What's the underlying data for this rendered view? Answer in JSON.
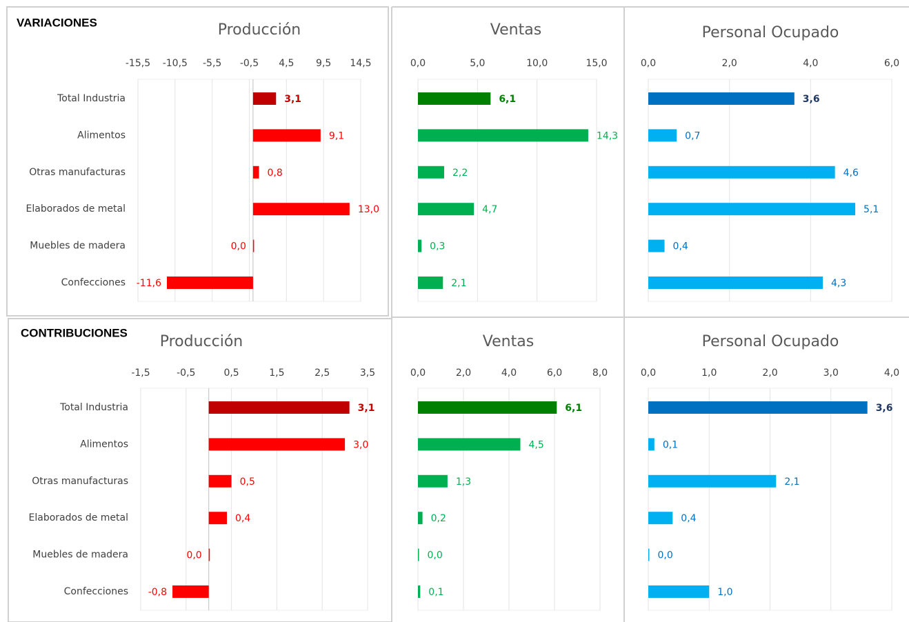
{
  "sections": [
    "VARIACIONES",
    "CONTRIBUCIONES"
  ],
  "chart_data": [
    {
      "type": "bar",
      "orientation": "horizontal",
      "title": "Producción",
      "categories": [
        "Total Industria",
        "Alimentos",
        "Otras manufacturas",
        "Elaborados de metal",
        "Muebles de madera",
        "Confecciones"
      ],
      "values": [
        3.1,
        9.1,
        0.8,
        13.0,
        0.0,
        -11.6
      ],
      "value_labels": [
        "3,1",
        "9,1",
        "0,8",
        "13,0",
        "0,0",
        "-11,6"
      ],
      "colors": [
        "#c00000",
        "#ff0000",
        "#ff0000",
        "#ff0000",
        "#ff0000",
        "#ff0000"
      ],
      "value_label_colors": [
        "#c00000",
        "#ff0000",
        "#ff0000",
        "#ff0000",
        "#ff0000",
        "#ff0000"
      ],
      "xlim": [
        -15.5,
        14.5
      ],
      "xticks": [
        {
          "value": -15.5,
          "label": "-15,5"
        },
        {
          "value": -10.5,
          "label": "-10,5"
        },
        {
          "value": -5.5,
          "label": "-5,5"
        },
        {
          "value": -0.5,
          "label": "-0,5"
        },
        {
          "value": 4.5,
          "label": "4,5"
        },
        {
          "value": 9.5,
          "label": "9,5"
        },
        {
          "value": 14.5,
          "label": "14,5"
        }
      ],
      "grid": true
    },
    {
      "type": "bar",
      "orientation": "horizontal",
      "title": "Ventas",
      "values": [
        6.1,
        14.3,
        2.2,
        4.7,
        0.3,
        2.1
      ],
      "value_labels": [
        "6,1",
        "14,3",
        "2,2",
        "4,7",
        "0,3",
        "2,1"
      ],
      "colors": [
        "#008000",
        "#00b050",
        "#00b050",
        "#00b050",
        "#00b050",
        "#00b050"
      ],
      "value_label_colors": [
        "#008000",
        "#00b050",
        "#00b050",
        "#00b050",
        "#00b050",
        "#00b050"
      ],
      "xlim": [
        0,
        15
      ],
      "xticks": [
        {
          "value": 0,
          "label": "0,0"
        },
        {
          "value": 5,
          "label": "5,0"
        },
        {
          "value": 10,
          "label": "10,0"
        },
        {
          "value": 15,
          "label": "15,0"
        }
      ],
      "grid": true
    },
    {
      "type": "bar",
      "orientation": "horizontal",
      "title": "Personal Ocupado",
      "values": [
        3.6,
        0.7,
        4.6,
        5.1,
        0.4,
        4.3
      ],
      "value_labels": [
        "3,6",
        "0,7",
        "4,6",
        "5,1",
        "0,4",
        "4,3"
      ],
      "colors": [
        "#0070c0",
        "#00b0f0",
        "#00b0f0",
        "#00b0f0",
        "#00b0f0",
        "#00b0f0"
      ],
      "value_label_colors": [
        "#1f3864",
        "#0070c0",
        "#0070c0",
        "#0070c0",
        "#0070c0",
        "#0070c0"
      ],
      "xlim": [
        0,
        6
      ],
      "xticks": [
        {
          "value": 0,
          "label": "0,0"
        },
        {
          "value": 2,
          "label": "2,0"
        },
        {
          "value": 4,
          "label": "4,0"
        },
        {
          "value": 6,
          "label": "6,0"
        }
      ],
      "grid": true
    },
    {
      "type": "bar",
      "orientation": "horizontal",
      "title": "Producción",
      "categories": [
        "Total Industria",
        "Alimentos",
        "Otras manufacturas",
        "Elaborados de metal",
        "Muebles de madera",
        "Confecciones"
      ],
      "values": [
        3.1,
        3.0,
        0.5,
        0.4,
        0.0,
        -0.8
      ],
      "value_labels": [
        "3,1",
        "3,0",
        "0,5",
        "0,4",
        "0,0",
        "-0,8"
      ],
      "colors": [
        "#c00000",
        "#ff0000",
        "#ff0000",
        "#ff0000",
        "#ff0000",
        "#ff0000"
      ],
      "value_label_colors": [
        "#c00000",
        "#ff0000",
        "#ff0000",
        "#ff0000",
        "#ff0000",
        "#ff0000"
      ],
      "xlim": [
        -1.5,
        3.5
      ],
      "xticks": [
        {
          "value": -1.5,
          "label": "-1,5"
        },
        {
          "value": -0.5,
          "label": "-0,5"
        },
        {
          "value": 0.5,
          "label": "0,5"
        },
        {
          "value": 1.5,
          "label": "1,5"
        },
        {
          "value": 2.5,
          "label": "2,5"
        },
        {
          "value": 3.5,
          "label": "3,5"
        }
      ],
      "grid": true
    },
    {
      "type": "bar",
      "orientation": "horizontal",
      "title": "Ventas",
      "values": [
        6.1,
        4.5,
        1.3,
        0.2,
        0.0,
        0.1
      ],
      "value_labels": [
        "6,1",
        "4,5",
        "1,3",
        "0,2",
        "0,0",
        "0,1"
      ],
      "colors": [
        "#008000",
        "#00b050",
        "#00b050",
        "#00b050",
        "#00b050",
        "#00b050"
      ],
      "value_label_colors": [
        "#008000",
        "#00b050",
        "#00b050",
        "#00b050",
        "#00b050",
        "#00b050"
      ],
      "xlim": [
        0,
        8
      ],
      "xticks": [
        {
          "value": 0,
          "label": "0,0"
        },
        {
          "value": 2,
          "label": "2,0"
        },
        {
          "value": 4,
          "label": "4,0"
        },
        {
          "value": 6,
          "label": "6,0"
        },
        {
          "value": 8,
          "label": "8,0"
        }
      ],
      "grid": true
    },
    {
      "type": "bar",
      "orientation": "horizontal",
      "title": "Personal Ocupado",
      "values": [
        3.6,
        0.1,
        2.1,
        0.4,
        0.0,
        1.0
      ],
      "value_labels": [
        "3,6",
        "0,1",
        "2,1",
        "0,4",
        "0,0",
        "1,0"
      ],
      "colors": [
        "#0070c0",
        "#00b0f0",
        "#00b0f0",
        "#00b0f0",
        "#00b0f0",
        "#00b0f0"
      ],
      "value_label_colors": [
        "#1f3864",
        "#0070c0",
        "#0070c0",
        "#0070c0",
        "#0070c0",
        "#0070c0"
      ],
      "xlim": [
        0,
        4
      ],
      "xticks": [
        {
          "value": 0,
          "label": "0,0"
        },
        {
          "value": 1,
          "label": "1,0"
        },
        {
          "value": 2,
          "label": "2,0"
        },
        {
          "value": 3,
          "label": "3,0"
        },
        {
          "value": 4,
          "label": "4,0"
        }
      ],
      "grid": true
    }
  ]
}
